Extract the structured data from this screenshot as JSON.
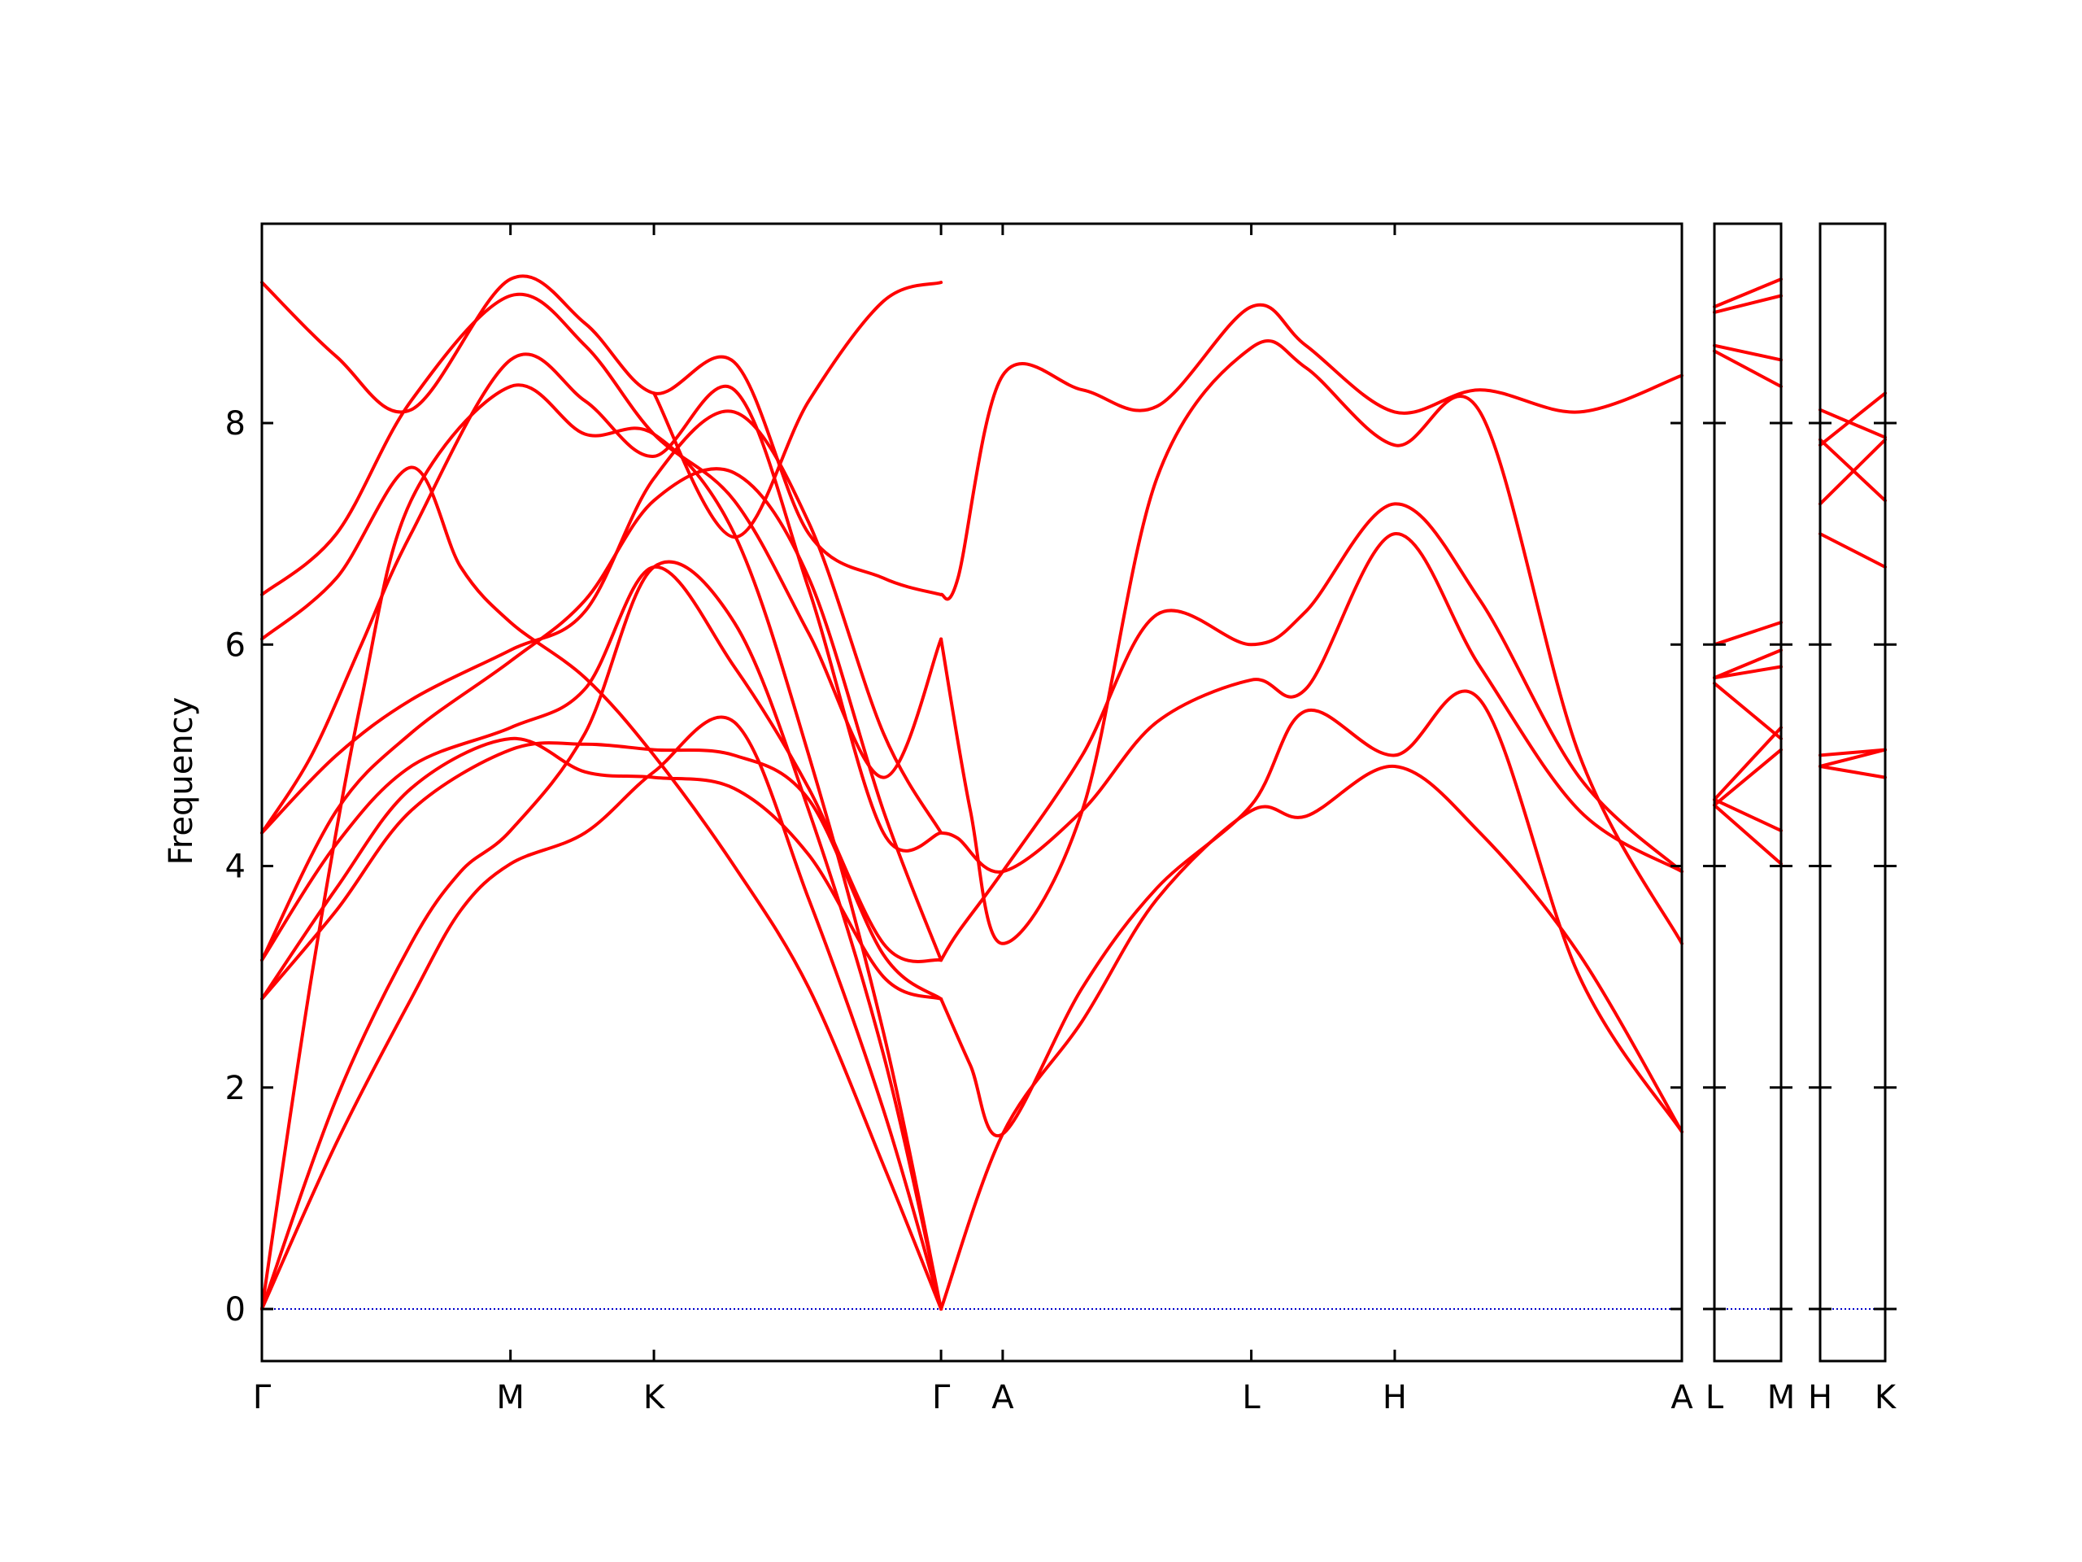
{
  "chart_data": {
    "type": "line",
    "ylabel": "Frequency",
    "ylim": [
      -0.47,
      9.8
    ],
    "yticks": [
      0,
      2,
      4,
      6,
      8
    ],
    "ytick_labels": [
      "0",
      "2",
      "4",
      "6",
      "8"
    ],
    "panels": [
      {
        "id": "main",
        "xticks": [
          {
            "label": "Γ",
            "x": 0.0
          },
          {
            "label": "M",
            "x": 1.0
          },
          {
            "label": "K",
            "x": 1.577
          },
          {
            "label": "Γ",
            "x": 2.732
          },
          {
            "label": "A",
            "x": 2.98
          },
          {
            "label": "L",
            "x": 3.98
          },
          {
            "label": "H",
            "x": 4.557
          },
          {
            "label": "A",
            "x": 5.712
          }
        ]
      },
      {
        "id": "lm",
        "xticks": [
          {
            "label": "L",
            "x": 0.0
          },
          {
            "label": "M",
            "x": 1.0
          }
        ]
      },
      {
        "id": "hk",
        "xticks": [
          {
            "label": "H",
            "x": 0.0
          },
          {
            "label": "K",
            "x": 1.0
          }
        ]
      }
    ],
    "zero_line_color": "#0000cc",
    "series_color": "#ff0000",
    "series": [
      {
        "panel": "main",
        "x": [
          0,
          0.3,
          0.6,
          0.8,
          1.0,
          1.3,
          1.577,
          1.9,
          2.2,
          2.5,
          2.732
        ],
        "y": [
          0,
          1.5,
          2.8,
          3.6,
          4.02,
          4.3,
          4.85,
          5.3,
          3.7,
          1.8,
          0
        ]
      },
      {
        "panel": "main",
        "x": [
          0,
          0.3,
          0.6,
          0.8,
          1.0,
          1.3,
          1.577,
          1.9,
          2.2,
          2.5,
          2.732
        ],
        "y": [
          0,
          1.9,
          3.3,
          3.95,
          4.32,
          5.2,
          6.7,
          6.2,
          4.5,
          2.3,
          0
        ]
      },
      {
        "panel": "main",
        "x": [
          0,
          0.2,
          0.4,
          0.6,
          1.0,
          1.3,
          1.577,
          1.9,
          2.2,
          2.5,
          2.732
        ],
        "y": [
          0,
          3.0,
          5.5,
          7.3,
          8.33,
          7.9,
          7.9,
          7.0,
          5.0,
          2.5,
          0
        ]
      },
      {
        "panel": "main",
        "x": [
          0,
          0.3,
          0.6,
          1.0,
          1.3,
          1.577,
          1.9,
          2.2,
          2.5,
          2.732
        ],
        "y": [
          2.8,
          3.6,
          4.5,
          5.05,
          5.1,
          5.05,
          5.0,
          4.6,
          3.2,
          2.8
        ]
      },
      {
        "panel": "main",
        "x": [
          0,
          0.3,
          0.6,
          1.0,
          1.3,
          1.577,
          1.9,
          2.2,
          2.5,
          2.732
        ],
        "y": [
          2.8,
          3.8,
          4.7,
          5.15,
          4.85,
          4.8,
          4.7,
          4.1,
          3.0,
          2.8
        ]
      },
      {
        "panel": "main",
        "x": [
          0,
          0.3,
          0.6,
          1.0,
          1.3,
          1.577,
          1.9,
          2.2,
          2.5,
          2.732
        ],
        "y": [
          3.15,
          4.2,
          4.9,
          5.25,
          5.6,
          6.7,
          5.8,
          4.7,
          3.3,
          3.15
        ]
      },
      {
        "panel": "main",
        "x": [
          0,
          0.3,
          0.6,
          1.0,
          1.3,
          1.577,
          1.9,
          2.2,
          2.5,
          2.732
        ],
        "y": [
          3.15,
          4.5,
          5.2,
          5.85,
          6.4,
          7.3,
          7.55,
          6.6,
          4.5,
          3.15
        ]
      },
      {
        "panel": "main",
        "x": [
          0,
          0.3,
          0.6,
          1.0,
          1.3,
          1.577,
          1.9,
          2.2,
          2.5,
          2.732
        ],
        "y": [
          4.3,
          5.0,
          5.5,
          5.95,
          6.3,
          7.5,
          8.1,
          7.1,
          5.2,
          4.3
        ]
      },
      {
        "panel": "main",
        "x": [
          0,
          0.2,
          0.4,
          0.6,
          1.0,
          1.3,
          1.577,
          1.9,
          2.2,
          2.5,
          2.732
        ],
        "y": [
          4.3,
          5.0,
          6.0,
          7.0,
          8.57,
          8.2,
          7.7,
          8.3,
          6.5,
          4.3,
          4.3
        ]
      },
      {
        "panel": "main",
        "x": [
          0,
          0.3,
          0.6,
          0.8,
          1.0,
          1.3,
          1.577,
          1.9,
          2.2,
          2.5,
          2.732
        ],
        "y": [
          6.05,
          6.6,
          7.6,
          6.7,
          6.2,
          5.7,
          5.0,
          4.0,
          2.9,
          1.3,
          0
        ]
      },
      {
        "panel": "main",
        "x": [
          0,
          0.3,
          0.6,
          1.0,
          1.3,
          1.577,
          1.9,
          2.2,
          2.5,
          2.732
        ],
        "y": [
          6.45,
          7.0,
          8.2,
          9.15,
          8.7,
          7.9,
          7.3,
          6.1,
          4.8,
          6.05
        ]
      },
      {
        "panel": "main",
        "x": [
          0,
          0.3,
          0.6,
          1.0,
          1.3,
          1.577,
          1.9,
          2.2,
          2.5,
          2.732
        ],
        "y": [
          9.27,
          8.6,
          8.12,
          9.3,
          8.9,
          8.27,
          8.55,
          7.0,
          6.6,
          6.45
        ]
      },
      {
        "panel": "main",
        "x": [
          1.577,
          1.9,
          2.2,
          2.5,
          2.732
        ],
        "y": [
          8.27,
          6.97,
          8.2,
          9.1,
          9.27
        ]
      },
      {
        "panel": "main",
        "x": [
          2.732,
          2.8,
          2.98,
          3.3,
          3.6,
          3.98,
          4.2,
          4.557,
          4.9,
          5.3,
          5.712
        ],
        "y": [
          6.45,
          6.6,
          8.43,
          8.3,
          8.15,
          9.05,
          8.7,
          8.1,
          8.3,
          8.1,
          8.43
        ]
      },
      {
        "panel": "main",
        "x": [
          2.732,
          2.85,
          2.98,
          3.3,
          3.6,
          3.98,
          4.2,
          4.557,
          4.9,
          5.3,
          5.712
        ],
        "y": [
          6.05,
          4.5,
          3.3,
          4.5,
          7.5,
          8.68,
          8.5,
          7.8,
          8.1,
          5.0,
          3.3
        ]
      },
      {
        "panel": "main",
        "x": [
          2.732,
          2.8,
          2.98,
          3.3,
          3.6,
          3.98,
          4.2,
          4.557,
          4.9,
          5.3,
          5.712
        ],
        "y": [
          3.15,
          3.4,
          3.95,
          5.0,
          6.27,
          6.0,
          6.3,
          7.27,
          6.4,
          4.8,
          3.95
        ]
      },
      {
        "panel": "main",
        "x": [
          2.732,
          2.8,
          2.98,
          3.3,
          3.6,
          3.98,
          4.2,
          4.557,
          4.9,
          5.3,
          5.712
        ],
        "y": [
          4.3,
          4.25,
          3.95,
          4.5,
          5.3,
          5.68,
          5.6,
          7.0,
          5.8,
          4.5,
          3.95
        ]
      },
      {
        "panel": "main",
        "x": [
          2.732,
          2.85,
          2.98,
          3.3,
          3.6,
          3.98,
          4.2,
          4.557,
          4.9,
          5.3,
          5.712
        ],
        "y": [
          2.8,
          2.2,
          1.58,
          2.9,
          3.8,
          4.55,
          5.4,
          5.0,
          5.5,
          3.0,
          1.6
        ]
      },
      {
        "panel": "main",
        "x": [
          2.732,
          2.98,
          3.3,
          3.6,
          3.98,
          4.2,
          4.557,
          4.9,
          5.3,
          5.712
        ],
        "y": [
          0,
          1.58,
          2.6,
          3.7,
          4.5,
          4.45,
          4.9,
          4.3,
          3.2,
          1.6
        ]
      },
      {
        "panel": "main",
        "x": [
          0,
          1.0
        ],
        "y": [
          0,
          0
        ]
      },
      {
        "panel": "lm",
        "x": [
          0,
          1.0
        ],
        "y": [
          9.05,
          9.3
        ]
      },
      {
        "panel": "lm",
        "x": [
          0,
          1.0
        ],
        "y": [
          9.0,
          9.15
        ]
      },
      {
        "panel": "lm",
        "x": [
          0,
          1.0
        ],
        "y": [
          8.7,
          8.57
        ]
      },
      {
        "panel": "lm",
        "x": [
          0,
          1.0
        ],
        "y": [
          8.65,
          8.33
        ]
      },
      {
        "panel": "lm",
        "x": [
          0,
          1.0
        ],
        "y": [
          6.0,
          6.2
        ]
      },
      {
        "panel": "lm",
        "x": [
          0,
          1.0
        ],
        "y": [
          5.7,
          5.95
        ]
      },
      {
        "panel": "lm",
        "x": [
          0,
          1.0
        ],
        "y": [
          5.7,
          5.8
        ]
      },
      {
        "panel": "lm",
        "x": [
          0,
          1.0
        ],
        "y": [
          5.65,
          5.15
        ]
      },
      {
        "panel": "lm",
        "x": [
          0,
          1.0
        ],
        "y": [
          4.6,
          5.25
        ]
      },
      {
        "panel": "lm",
        "x": [
          0,
          1.0
        ],
        "y": [
          4.55,
          5.05
        ]
      },
      {
        "panel": "lm",
        "x": [
          0,
          1.0
        ],
        "y": [
          4.6,
          4.32
        ]
      },
      {
        "panel": "lm",
        "x": [
          0,
          1.0
        ],
        "y": [
          4.55,
          4.02
        ]
      },
      {
        "panel": "hk",
        "x": [
          0,
          1.0
        ],
        "y": [
          8.12,
          7.87
        ]
      },
      {
        "panel": "hk",
        "x": [
          0,
          1.0
        ],
        "y": [
          7.8,
          8.27
        ]
      },
      {
        "panel": "hk",
        "x": [
          0,
          1.0
        ],
        "y": [
          7.27,
          7.85
        ]
      },
      {
        "panel": "hk",
        "x": [
          0,
          1.0
        ],
        "y": [
          7.0,
          6.7
        ]
      },
      {
        "panel": "hk",
        "x": [
          0,
          1.0
        ],
        "y": [
          7.85,
          7.3
        ]
      },
      {
        "panel": "hk",
        "x": [
          0,
          1.0
        ],
        "y": [
          5.0,
          5.05
        ]
      },
      {
        "panel": "hk",
        "x": [
          0,
          1.0
        ],
        "y": [
          4.9,
          5.05
        ]
      },
      {
        "panel": "hk",
        "x": [
          0,
          1.0
        ],
        "y": [
          4.9,
          4.8
        ]
      }
    ]
  }
}
